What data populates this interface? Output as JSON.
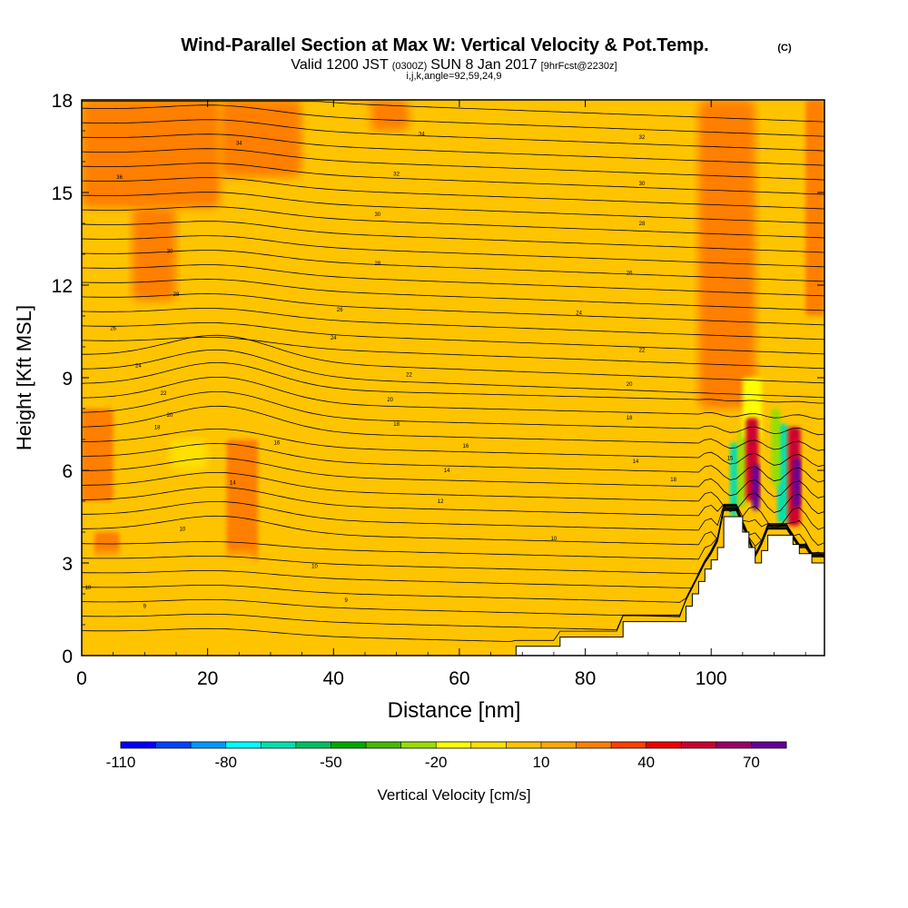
{
  "chart_data": {
    "type": "heatmap",
    "title": "Wind-Parallel Section at Max W: Vertical Velocity & Pot.Temp.",
    "title_mark": "(C)",
    "subtitle_parts": [
      "Valid 1200 JST",
      "(0300Z)",
      "SUN 8 Jan 2017",
      "[9hrFcst@2230z]"
    ],
    "subtitle2": "i,j,k,angle=92,59,24,9",
    "xlabel": "Distance [nm]",
    "ylabel": "Height [Kft MSL]",
    "xlim": [
      0,
      118
    ],
    "ylim": [
      0,
      18
    ],
    "xticks": [
      "0",
      "20",
      "40",
      "60",
      "80",
      "100"
    ],
    "yticks": [
      "0",
      "3",
      "6",
      "9",
      "12",
      "15",
      "18"
    ],
    "colorbar": {
      "label": "Vertical Velocity [cm/s]",
      "min": -110,
      "max": 80,
      "step": 10,
      "tick_labels": [
        "-110",
        "-80",
        "-50",
        "-20",
        "10",
        "40",
        "70"
      ],
      "colors": [
        "#0000ff",
        "#0044ff",
        "#0099ff",
        "#00ffff",
        "#00e0b0",
        "#00c060",
        "#00a800",
        "#44bb00",
        "#99dd00",
        "#ffff00",
        "#ffe000",
        "#ffc400",
        "#ffa800",
        "#ff7f00",
        "#ff4000",
        "#ee0000",
        "#cc0033",
        "#990066",
        "#660099"
      ]
    },
    "terrain_nm_kft": [
      [
        0,
        0
      ],
      [
        69,
        0
      ],
      [
        69,
        0.3
      ],
      [
        76,
        0.3
      ],
      [
        76,
        0.6
      ],
      [
        86,
        0.6
      ],
      [
        86,
        1.1
      ],
      [
        96,
        1.1
      ],
      [
        96,
        1.6
      ],
      [
        97,
        1.6
      ],
      [
        97,
        2.0
      ],
      [
        98,
        2.0
      ],
      [
        98,
        2.4
      ],
      [
        99,
        2.4
      ],
      [
        99,
        2.8
      ],
      [
        100,
        2.8
      ],
      [
        100,
        3.1
      ],
      [
        101,
        3.1
      ],
      [
        101,
        3.5
      ],
      [
        102,
        3.5
      ],
      [
        102,
        4.5
      ],
      [
        105,
        4.5
      ],
      [
        105,
        4.0
      ],
      [
        106,
        4.0
      ],
      [
        106,
        3.5
      ],
      [
        107,
        3.5
      ],
      [
        107,
        3.0
      ],
      [
        108,
        3.0
      ],
      [
        108,
        3.4
      ],
      [
        109,
        3.4
      ],
      [
        109,
        3.9
      ],
      [
        113,
        3.9
      ],
      [
        113,
        3.6
      ],
      [
        114,
        3.6
      ],
      [
        114,
        3.3
      ],
      [
        116,
        3.3
      ],
      [
        116,
        3.0
      ],
      [
        118,
        3.0
      ]
    ],
    "velocity_regions": [
      {
        "x": 0,
        "y": 14.5,
        "w": 22,
        "h": 3.5,
        "value": 20
      },
      {
        "x": 22,
        "y": 15.5,
        "w": 13,
        "h": 2.5,
        "value": 20
      },
      {
        "x": 8,
        "y": 11.5,
        "w": 7,
        "h": 3,
        "value": 20
      },
      {
        "x": 42,
        "y": 17,
        "w": 10,
        "h": 1,
        "value": 20
      },
      {
        "x": 0,
        "y": 5,
        "w": 5,
        "h": 3,
        "value": 20
      },
      {
        "x": 23,
        "y": 3,
        "w": 5,
        "h": 4,
        "value": 20
      },
      {
        "x": 2,
        "y": 3,
        "w": 4,
        "h": 1,
        "value": 20
      },
      {
        "x": 98,
        "y": 8,
        "w": 9,
        "h": 10,
        "value": 20
      },
      {
        "x": 115,
        "y": 11,
        "w": 3,
        "h": 7,
        "value": 20
      },
      {
        "x": 36,
        "y": 14,
        "w": 10,
        "h": 4,
        "value": 0
      },
      {
        "x": 55,
        "y": 10,
        "w": 10,
        "h": 8,
        "value": 0
      },
      {
        "x": 44,
        "y": 1,
        "w": 22,
        "h": 2.5,
        "value": 0
      },
      {
        "x": 0,
        "y": 1.3,
        "w": 28,
        "h": 2,
        "value": 0
      },
      {
        "x": 29,
        "y": 1.2,
        "w": 10,
        "h": 1.5,
        "value": 0
      },
      {
        "x": 66,
        "y": 0.5,
        "w": 14,
        "h": 4,
        "value": 0
      },
      {
        "x": 80,
        "y": 12,
        "w": 12,
        "h": 6,
        "value": 0
      },
      {
        "x": 14,
        "y": 6,
        "w": 6,
        "h": 1,
        "value": -10
      },
      {
        "x": 103,
        "y": 4.5,
        "w": 1.3,
        "h": 2.4,
        "value": -70
      },
      {
        "x": 104.3,
        "y": 4.8,
        "w": 1.2,
        "h": 2.5,
        "value": -30
      },
      {
        "x": 105,
        "y": 7,
        "w": 3,
        "h": 2,
        "value": -20
      },
      {
        "x": 110.5,
        "y": 4.3,
        "w": 1.7,
        "h": 3.2,
        "value": -70
      },
      {
        "x": 109.5,
        "y": 5.5,
        "w": 1.5,
        "h": 2.5,
        "value": -30
      },
      {
        "x": 105.5,
        "y": 5,
        "w": 2,
        "h": 2.7,
        "value": 50
      },
      {
        "x": 106.5,
        "y": 4.7,
        "w": 1.2,
        "h": 1.5,
        "value": 70
      },
      {
        "x": 112.2,
        "y": 4.2,
        "w": 2,
        "h": 3.2,
        "value": 50
      },
      {
        "x": 113,
        "y": 4.8,
        "w": 1.2,
        "h": 1.6,
        "value": 70
      }
    ],
    "contour_labels": [
      {
        "x": 25,
        "y": 16.6,
        "text": "34"
      },
      {
        "x": 54,
        "y": 16.9,
        "text": "34"
      },
      {
        "x": 89,
        "y": 16.8,
        "text": "32"
      },
      {
        "x": 6,
        "y": 15.5,
        "text": "36"
      },
      {
        "x": 50,
        "y": 15.6,
        "text": "32"
      },
      {
        "x": 89,
        "y": 15.3,
        "text": "30"
      },
      {
        "x": 47,
        "y": 14.3,
        "text": "30"
      },
      {
        "x": 89,
        "y": 14.0,
        "text": "28"
      },
      {
        "x": 14,
        "y": 13.1,
        "text": "30"
      },
      {
        "x": 47,
        "y": 12.7,
        "text": "28"
      },
      {
        "x": 87,
        "y": 12.4,
        "text": "26"
      },
      {
        "x": 15,
        "y": 11.7,
        "text": "28"
      },
      {
        "x": 41,
        "y": 11.2,
        "text": "26"
      },
      {
        "x": 79,
        "y": 11.1,
        "text": "24"
      },
      {
        "x": 5,
        "y": 10.6,
        "text": "26"
      },
      {
        "x": 40,
        "y": 10.3,
        "text": "24"
      },
      {
        "x": 89,
        "y": 9.9,
        "text": "22"
      },
      {
        "x": 9,
        "y": 9.4,
        "text": "24"
      },
      {
        "x": 52,
        "y": 9.1,
        "text": "22"
      },
      {
        "x": 87,
        "y": 8.8,
        "text": "20"
      },
      {
        "x": 13,
        "y": 8.5,
        "text": "22"
      },
      {
        "x": 49,
        "y": 8.3,
        "text": "20"
      },
      {
        "x": 14,
        "y": 7.8,
        "text": "20"
      },
      {
        "x": 87,
        "y": 7.7,
        "text": "18"
      },
      {
        "x": 12,
        "y": 7.4,
        "text": "18"
      },
      {
        "x": 50,
        "y": 7.5,
        "text": "18"
      },
      {
        "x": 31,
        "y": 6.9,
        "text": "16"
      },
      {
        "x": 61,
        "y": 6.8,
        "text": "16"
      },
      {
        "x": 88,
        "y": 6.3,
        "text": "14"
      },
      {
        "x": 58,
        "y": 6.0,
        "text": "14"
      },
      {
        "x": 24,
        "y": 5.6,
        "text": "14"
      },
      {
        "x": 94,
        "y": 5.7,
        "text": "18"
      },
      {
        "x": 103,
        "y": 6.4,
        "text": "15"
      },
      {
        "x": 57,
        "y": 5.0,
        "text": "12"
      },
      {
        "x": 16,
        "y": 4.1,
        "text": "10"
      },
      {
        "x": 75,
        "y": 3.8,
        "text": "10"
      },
      {
        "x": 37,
        "y": 2.9,
        "text": "10"
      },
      {
        "x": 1,
        "y": 2.2,
        "text": "10"
      },
      {
        "x": 42,
        "y": 1.8,
        "text": "9"
      },
      {
        "x": 10,
        "y": 1.6,
        "text": "9"
      }
    ]
  }
}
